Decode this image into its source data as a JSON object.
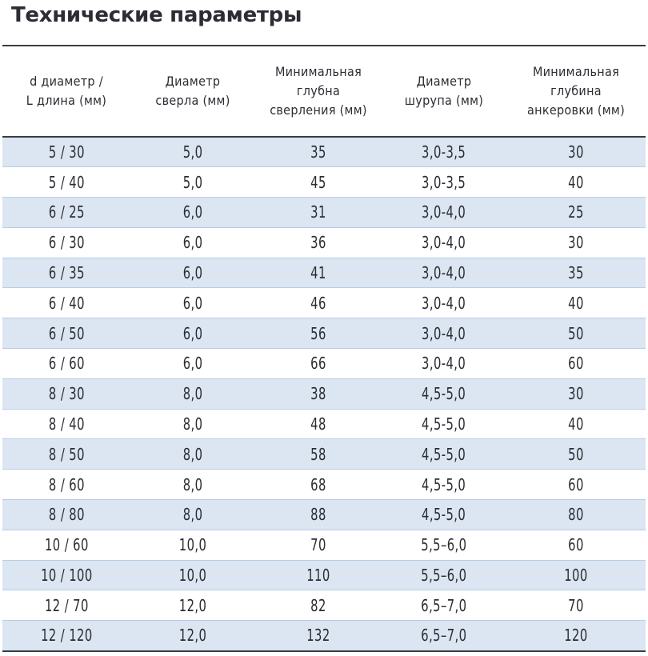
{
  "title": "Технические параметры",
  "table": {
    "headers": [
      [
        "d диаметр /",
        "L длина (мм)"
      ],
      [
        "Диаметр",
        "сверла (мм)"
      ],
      [
        "Минимальная",
        "глубна",
        "сверления (мм)"
      ],
      [
        "Диаметр",
        "шурупа (мм)"
      ],
      [
        "Минимальная",
        "глубина",
        "анкеровки (мм)"
      ]
    ],
    "rows": [
      [
        "5 / 30",
        "5,0",
        "35",
        "3,0-3,5",
        "30"
      ],
      [
        "5 / 40",
        "5,0",
        "45",
        "3,0-3,5",
        "40"
      ],
      [
        "6 / 25",
        "6,0",
        "31",
        "3,0-4,0",
        "25"
      ],
      [
        "6 / 30",
        "6,0",
        "36",
        "3,0-4,0",
        "30"
      ],
      [
        "6 / 35",
        "6,0",
        "41",
        "3,0-4,0",
        "35"
      ],
      [
        "6 / 40",
        "6,0",
        "46",
        "3,0-4,0",
        "40"
      ],
      [
        "6 / 50",
        "6,0",
        "56",
        "3,0-4,0",
        "50"
      ],
      [
        "6 / 60",
        "6,0",
        "66",
        "3,0-4,0",
        "60"
      ],
      [
        "8 / 30",
        "8,0",
        "38",
        "4,5-5,0",
        "30"
      ],
      [
        "8 / 40",
        "8,0",
        "48",
        "4,5-5,0",
        "40"
      ],
      [
        "8 / 50",
        "8,0",
        "58",
        "4,5-5,0",
        "50"
      ],
      [
        "8 / 60",
        "8,0",
        "68",
        "4,5-5,0",
        "60"
      ],
      [
        "8 / 80",
        "8,0",
        "88",
        "4,5-5,0",
        "80"
      ],
      [
        "10 / 60",
        "10,0",
        "70",
        "5,5–6,0",
        "60"
      ],
      [
        "10 / 100",
        "10,0",
        "110",
        "5,5–6,0",
        "100"
      ],
      [
        "12 / 70",
        "12,0",
        "82",
        "6,5–7,0",
        "70"
      ],
      [
        "12 / 120",
        "12,0",
        "132",
        "6,5–7,0",
        "120"
      ]
    ]
  },
  "colors": {
    "stripe": "#dbe6f2",
    "row_divider": "#b7cde6",
    "rule": "#3a3d42",
    "text": "#2b2d33"
  }
}
